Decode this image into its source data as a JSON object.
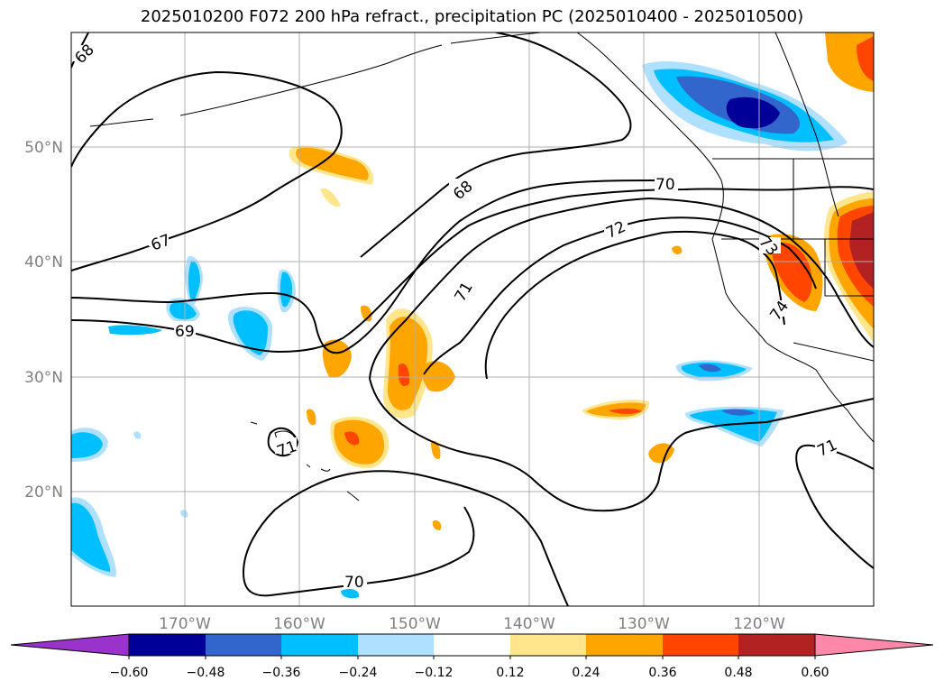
{
  "title": "2025010200 F072 200 hPa refract., precipitation PC (2025010400 - 2025010500)",
  "map": {
    "lon_labels": [
      "170°W",
      "160°W",
      "150°W",
      "140°W",
      "130°W",
      "120°W"
    ],
    "lat_labels": [
      "50°N",
      "40°N",
      "30°N",
      "20°N"
    ],
    "contour_labels": [
      "68",
      "67",
      "69",
      "68",
      "70",
      "72",
      "71",
      "73",
      "74",
      "71",
      "71",
      "70"
    ]
  },
  "colorbar": {
    "colors": [
      "#9933cc",
      "#000099",
      "#3366cc",
      "#00bfff",
      "#b0e0ff",
      "#ffffff",
      "#ffe68c",
      "#ffa500",
      "#ff4500",
      "#b22222",
      "#ff88aa"
    ],
    "labels": [
      "−0.60",
      "−0.48",
      "−0.36",
      "−0.24",
      "−0.12",
      "0.12",
      "0.24",
      "0.36",
      "0.48",
      "0.60"
    ]
  }
}
